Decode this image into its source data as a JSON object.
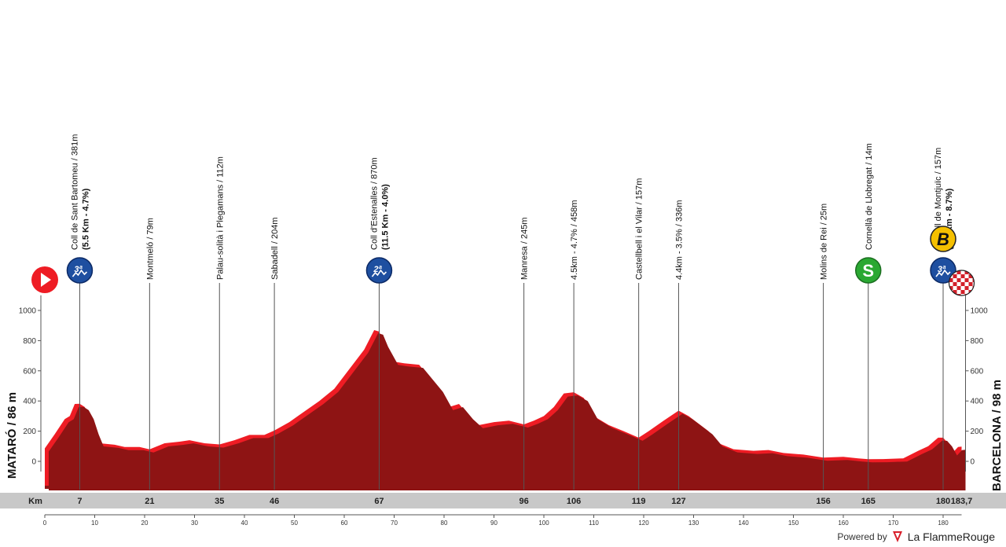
{
  "chart_data": {
    "type": "area",
    "title": "",
    "start": {
      "label": "MATARÓ / 86 m",
      "km": 0,
      "alt": 86
    },
    "finish": {
      "label": "BARCELONA / 98 m",
      "km": 183.7,
      "alt": 98
    },
    "xlabel": "Km",
    "xlim": [
      0,
      183.7
    ],
    "ylim": [
      -150,
      1100
    ],
    "y_ticks": [
      "0",
      "200",
      "400",
      "600",
      "800",
      "1000"
    ],
    "y_tick_values": [
      0,
      200,
      400,
      600,
      800,
      1000
    ],
    "x_ticks": [
      "0",
      "10",
      "20",
      "30",
      "40",
      "50",
      "60",
      "70",
      "80",
      "90",
      "100",
      "110",
      "120",
      "130",
      "140",
      "150",
      "160",
      "170",
      "180"
    ],
    "x_tick_values": [
      0,
      10,
      20,
      30,
      40,
      50,
      60,
      70,
      80,
      90,
      100,
      110,
      120,
      130,
      140,
      150,
      160,
      170,
      180
    ],
    "fill_color": "#8e1414",
    "highlight_color": "#ee1c24",
    "profile": [
      [
        0,
        86
      ],
      [
        2,
        180
      ],
      [
        4,
        280
      ],
      [
        5,
        300
      ],
      [
        6,
        380
      ],
      [
        7,
        381
      ],
      [
        8,
        360
      ],
      [
        9,
        300
      ],
      [
        10,
        200
      ],
      [
        11,
        120
      ],
      [
        14,
        110
      ],
      [
        16,
        95
      ],
      [
        19,
        95
      ],
      [
        21,
        79
      ],
      [
        24,
        120
      ],
      [
        27,
        130
      ],
      [
        29,
        140
      ],
      [
        32,
        120
      ],
      [
        35,
        112
      ],
      [
        38,
        140
      ],
      [
        41,
        175
      ],
      [
        44,
        175
      ],
      [
        46,
        204
      ],
      [
        49,
        260
      ],
      [
        52,
        330
      ],
      [
        55,
        400
      ],
      [
        58,
        480
      ],
      [
        61,
        610
      ],
      [
        64,
        740
      ],
      [
        66,
        870
      ],
      [
        67,
        860
      ],
      [
        68,
        780
      ],
      [
        70,
        660
      ],
      [
        72,
        650
      ],
      [
        75,
        640
      ],
      [
        77,
        560
      ],
      [
        79,
        480
      ],
      [
        81,
        360
      ],
      [
        83,
        380
      ],
      [
        85,
        300
      ],
      [
        87,
        240
      ],
      [
        90,
        260
      ],
      [
        93,
        270
      ],
      [
        96,
        245
      ],
      [
        98,
        270
      ],
      [
        100,
        300
      ],
      [
        102,
        360
      ],
      [
        104,
        450
      ],
      [
        106,
        458
      ],
      [
        108,
        420
      ],
      [
        110,
        300
      ],
      [
        113,
        240
      ],
      [
        116,
        200
      ],
      [
        119,
        157
      ],
      [
        121,
        200
      ],
      [
        124,
        270
      ],
      [
        127,
        336
      ],
      [
        129,
        300
      ],
      [
        131,
        250
      ],
      [
        133,
        200
      ],
      [
        135,
        120
      ],
      [
        138,
        80
      ],
      [
        142,
        70
      ],
      [
        145,
        75
      ],
      [
        148,
        55
      ],
      [
        152,
        45
      ],
      [
        156,
        25
      ],
      [
        160,
        30
      ],
      [
        163,
        20
      ],
      [
        165,
        14
      ],
      [
        168,
        15
      ],
      [
        172,
        20
      ],
      [
        175,
        70
      ],
      [
        177,
        100
      ],
      [
        179,
        157
      ],
      [
        180,
        157
      ],
      [
        181,
        120
      ],
      [
        182,
        60
      ],
      [
        183,
        95
      ],
      [
        183.7,
        98
      ]
    ],
    "points": [
      {
        "km": "7",
        "label": "Coll de Sant Bartomeu / 381m",
        "detail": "(5.5 Km - 4.7%)",
        "icon": "climb-3rd"
      },
      {
        "km": "21",
        "label": "Montmeló / 79m",
        "detail": "",
        "icon": ""
      },
      {
        "km": "35",
        "label": "Palau-solità i Plegamans / 112m",
        "detail": "",
        "icon": ""
      },
      {
        "km": "46",
        "label": "Sabadell / 204m",
        "detail": "",
        "icon": ""
      },
      {
        "km": "67",
        "label": "Coll d'Estenalles / 870m",
        "detail": "(11.5 Km - 4.0%)",
        "icon": "climb-2nd"
      },
      {
        "km": "96",
        "label": "Manresa / 245m",
        "detail": "",
        "icon": ""
      },
      {
        "km": "106",
        "label": "4.5km - 4.7% / 458m",
        "detail": "",
        "icon": ""
      },
      {
        "km": "119",
        "label": "Castellbell i el Vilar / 157m",
        "detail": "",
        "icon": ""
      },
      {
        "km": "127",
        "label": "4.4km - 3.5% / 336m",
        "detail": "",
        "icon": ""
      },
      {
        "km": "156",
        "label": "Molins de Rei / 25m",
        "detail": "",
        "icon": ""
      },
      {
        "km": "165",
        "label": "Cornellà de Llobregat / 14m",
        "detail": "",
        "icon": "sprint"
      },
      {
        "km": "180",
        "label": "Castell de Montjuïc / 157m",
        "detail": "(0.9 Km - 8.7%)",
        "icon": "climb-3rd"
      }
    ],
    "km_labels": [
      "7",
      "21",
      "35",
      "46",
      "67",
      "96",
      "106",
      "119",
      "127",
      "156",
      "165",
      "180",
      "183,7"
    ],
    "climb_category_3": "3ª",
    "climb_category_2": "2ª",
    "sprint_label": "S",
    "bonus_label": "B",
    "colors": {
      "climb": "#1e4fa0",
      "sprint": "#2aa832",
      "bonus": "#f5c000",
      "start": "#ee1c24"
    }
  },
  "footer": {
    "powered": "Powered by",
    "brand": "La FlammeRouge"
  }
}
